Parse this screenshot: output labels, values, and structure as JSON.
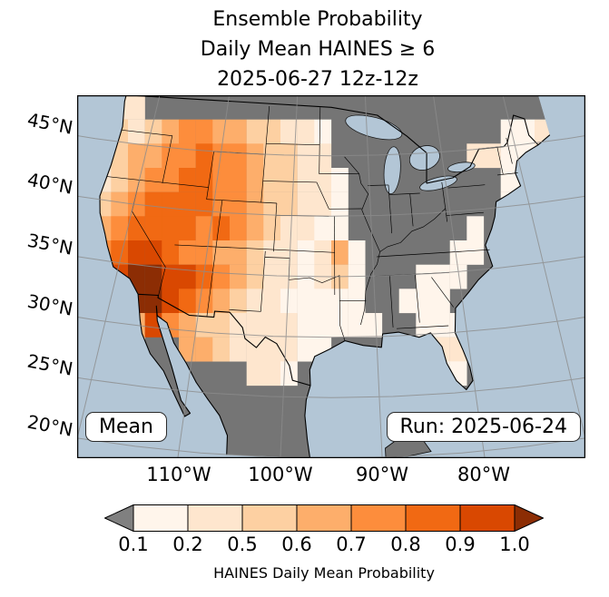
{
  "title": {
    "line1": "Ensemble Probability",
    "line2": "Daily Mean HAINES ≥ 6",
    "line3": "2025-06-27 12z-12z"
  },
  "map": {
    "lat_labels": [
      "45°N",
      "40°N",
      "35°N",
      "30°N",
      "25°N",
      "20°N"
    ],
    "lon_labels": [
      "110°W",
      "100°W",
      "90°W",
      "80°W"
    ],
    "annotations": {
      "mean_box": "Mean",
      "run_box": "Run: 2025-06-24"
    },
    "ocean_color": "#b3c6d6",
    "mask_color": "#757575",
    "palette": {
      "a": "#fff5eb",
      "b": "#fee6ce",
      "c": "#fdd0a2",
      "d": "#fdae6b",
      "e": "#fd8d3c",
      "f": "#f16913",
      "h": "#d94801",
      "i": "#8c2d04"
    }
  },
  "chart_data": {
    "type": "heatmap",
    "title": "Ensemble Probability Daily Mean HAINES ≥ 6",
    "valid_period": "2025-06-27 12z-12z",
    "run": "2025-06-24",
    "lon_range": [
      -125,
      -65
    ],
    "lat_range": [
      20,
      50
    ],
    "cell_deg": 2,
    "levels": [
      0.1,
      0.2,
      0.5,
      0.6,
      0.7,
      0.8,
      0.9,
      1.0
    ],
    "value_key": {
      ".": "water",
      "g": "masked / below 0.1 (gray)",
      "a": [
        0.1,
        0.2
      ],
      "b": [
        0.2,
        0.5
      ],
      "c": [
        0.5,
        0.6
      ],
      "d": [
        0.6,
        0.7
      ],
      "e": [
        0.7,
        0.8
      ],
      "f": [
        0.8,
        0.9
      ],
      "h": [
        0.9,
        1.0
      ],
      "i": [
        1.0,
        1.0
      ]
    },
    "rows_north_to_south": [
      ".bbbggggggggggggggggggggggggg.",
      ".ccbcdeeddccbbaggggggggggaabg.",
      ".bcddeefeedccbbggggggggbbaab..",
      ".bcdeeffeedccbbagggggggggaa...",
      ".cdeffffeedccbbaggggggggga....",
      ".deffffefedcbbaaggggggga......",
      ".efhhfeeddcbbabdagggggaa......",
      ".fhiihhfedcbbabcagggaaa.......",
      "..fiihfedcbbaaaaaggaaa........",
      "...dhedccbbbbaaaaa..aaa.......",
      "...cggddcbbbbaa......bb.......",
      "....g.ggggbba........aa.......",
      ".....g.ggggg..................",
      "........ggggg.................",
      ".........ggggg................"
    ]
  },
  "colorbar": {
    "ticks": [
      "0.1",
      "0.2",
      "0.5",
      "0.6",
      "0.7",
      "0.8",
      "0.9",
      "1.0"
    ],
    "segment_colors": [
      "#fff5eb",
      "#fee6ce",
      "#fdd0a2",
      "#fdae6b",
      "#fd8d3c",
      "#f16913",
      "#d94801"
    ],
    "under_arrow_color": "#808080",
    "over_arrow_color": "#8c2d04",
    "label": "HAINES Daily Mean Probability"
  }
}
